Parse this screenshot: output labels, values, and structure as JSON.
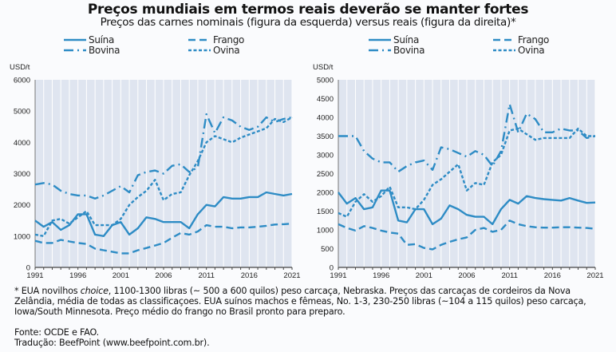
{
  "title": "Preços mundiais em termos reais deverão se manter fortes",
  "subtitle": "Preços das carnes nominais (figura da esquerda) versus reais (figura da direita)*",
  "colors": {
    "line": "#2e8cc5",
    "plot_bg": "#dfe5f0",
    "grid": "#ffffff"
  },
  "chart_data": [
    {
      "type": "line",
      "ylabel": "USD/t",
      "ylim": [
        0,
        6000
      ],
      "yticks": [
        0,
        1000,
        2000,
        3000,
        4000,
        5000,
        6000
      ],
      "xlim": [
        1991,
        2021
      ],
      "xticks": [
        1991,
        1996,
        2001,
        2006,
        2011,
        2016,
        2021
      ],
      "grid": "vertical",
      "legend": "top",
      "x": [
        1991,
        1992,
        1993,
        1994,
        1995,
        1996,
        1997,
        1998,
        1999,
        2000,
        2001,
        2002,
        2003,
        2004,
        2005,
        2006,
        2007,
        2008,
        2009,
        2010,
        2011,
        2012,
        2013,
        2014,
        2015,
        2016,
        2017,
        2018,
        2019,
        2020,
        2021
      ],
      "series": [
        {
          "name": "Suína",
          "style": "solid",
          "values": [
            1500,
            1300,
            1450,
            1200,
            1350,
            1700,
            1700,
            1050,
            1000,
            1350,
            1450,
            1050,
            1250,
            1600,
            1550,
            1450,
            1450,
            1450,
            1250,
            1700,
            2000,
            1950,
            2250,
            2200,
            2200,
            2250,
            2250,
            2400,
            2350,
            2300,
            2350
          ]
        },
        {
          "name": "Frango",
          "style": "dashed",
          "values": [
            850,
            780,
            780,
            880,
            830,
            780,
            750,
            600,
            550,
            500,
            450,
            450,
            550,
            620,
            700,
            780,
            950,
            1100,
            1050,
            1150,
            1350,
            1300,
            1300,
            1250,
            1280,
            1280,
            1300,
            1330,
            1370,
            1380,
            1400
          ]
        },
        {
          "name": "Bovina",
          "style": "dash-dot",
          "values": [
            2650,
            2700,
            2650,
            2450,
            2350,
            2300,
            2300,
            2200,
            2300,
            2450,
            2600,
            2400,
            2950,
            3050,
            3100,
            3000,
            3250,
            3300,
            3050,
            3200,
            4900,
            4300,
            4800,
            4700,
            4500,
            4400,
            4500,
            4800,
            4650,
            4750,
            4800
          ]
        },
        {
          "name": "Ovina",
          "style": "dotted",
          "values": [
            1050,
            1000,
            1500,
            1550,
            1400,
            1600,
            1800,
            1350,
            1350,
            1350,
            1550,
            2000,
            2250,
            2450,
            2800,
            2150,
            2350,
            2400,
            2950,
            3400,
            4000,
            4200,
            4100,
            4000,
            4150,
            4250,
            4350,
            4450,
            4750,
            4650,
            4800
          ]
        }
      ]
    },
    {
      "type": "line",
      "ylabel": "USD/t",
      "ylim": [
        0,
        5000
      ],
      "yticks": [
        0,
        500,
        1000,
        1500,
        2000,
        2500,
        3000,
        3500,
        4000,
        4500,
        5000
      ],
      "xlim": [
        1991,
        2021
      ],
      "xticks": [
        1991,
        1996,
        2001,
        2006,
        2011,
        2016,
        2021
      ],
      "grid": "vertical",
      "legend": "top",
      "x": [
        1991,
        1992,
        1993,
        1994,
        1995,
        1996,
        1997,
        1998,
        1999,
        2000,
        2001,
        2002,
        2003,
        2004,
        2005,
        2006,
        2007,
        2008,
        2009,
        2010,
        2011,
        2012,
        2013,
        2014,
        2015,
        2016,
        2017,
        2018,
        2019,
        2020,
        2021
      ],
      "series": [
        {
          "name": "Suína",
          "style": "solid",
          "values": [
            2000,
            1700,
            1850,
            1550,
            1600,
            2050,
            2050,
            1250,
            1200,
            1550,
            1550,
            1150,
            1300,
            1650,
            1550,
            1400,
            1350,
            1350,
            1150,
            1550,
            1800,
            1700,
            1900,
            1850,
            1820,
            1800,
            1780,
            1850,
            1780,
            1720,
            1730
          ]
        },
        {
          "name": "Frango",
          "style": "dashed",
          "values": [
            1150,
            1050,
            980,
            1100,
            1050,
            980,
            930,
            900,
            600,
            620,
            520,
            480,
            600,
            680,
            750,
            800,
            1000,
            1050,
            950,
            1000,
            1250,
            1150,
            1100,
            1070,
            1060,
            1060,
            1070,
            1070,
            1060,
            1050,
            1030
          ]
        },
        {
          "name": "Bovina",
          "style": "dash-dot",
          "values": [
            3500,
            3500,
            3500,
            3100,
            2900,
            2800,
            2800,
            2550,
            2700,
            2800,
            2850,
            2600,
            3200,
            3150,
            3050,
            2950,
            3100,
            3000,
            2700,
            3100,
            4350,
            3600,
            4100,
            3950,
            3600,
            3600,
            3700,
            3650,
            3650,
            3450,
            3500
          ]
        },
        {
          "name": "Ovina",
          "style": "dotted",
          "values": [
            1450,
            1350,
            1750,
            1950,
            1750,
            1900,
            2150,
            1600,
            1600,
            1550,
            1800,
            2200,
            2350,
            2550,
            2750,
            2050,
            2250,
            2200,
            2800,
            3000,
            3650,
            3700,
            3550,
            3400,
            3450,
            3450,
            3450,
            3450,
            3700,
            3500,
            3500
          ]
        }
      ]
    }
  ],
  "notes": {
    "footnote_1": "* EUA novilhos ",
    "footnote_italic": "choice",
    "footnote_2": ", 1100-1300 libras (~ 500 a 600 quilos) peso carcaça, Nebraska. Preços das carcaças de cordeiros da Nova Zelândia, média de todas as classificaçoes. EUA suínos machos e fêmeas, No. 1-3, 230-250 libras (~104 a  115 quilos) peso carcaça, Iowa/South Minnesota. Preço médio do frango no Brasil pronto para preparo.",
    "source": "Fonte: OCDE e FAO.",
    "translation": "Tradução: BeefPoint (www.beefpoint.com.br)."
  }
}
